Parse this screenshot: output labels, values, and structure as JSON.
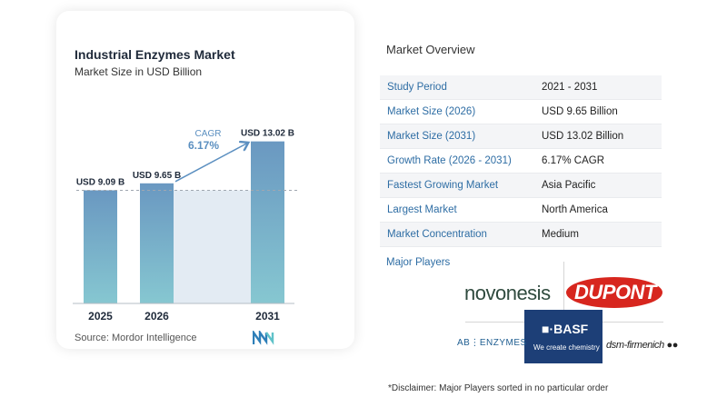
{
  "chart_data": {
    "type": "bar",
    "title": "Industrial Enzymes Market",
    "subtitle": "Market Size in USD Billion",
    "categories": [
      "2025",
      "2026",
      "2031"
    ],
    "values": [
      9.09,
      9.65,
      13.02
    ],
    "data_labels": [
      "USD 9.09 B",
      "USD 9.65 B",
      "USD 13.02 B"
    ],
    "ylim": [
      0,
      14
    ],
    "cagr_label": "CAGR",
    "cagr_value": "6.17%",
    "source": "Source:  Mordor Intelligence",
    "colors": {
      "bar_top": "#6a98c1",
      "bar_bottom": "#86c7d1",
      "band": "#e3ebf3",
      "arrow": "#5b8fc0"
    }
  },
  "overview": {
    "title": "Market Overview",
    "rows": [
      {
        "label": "Study Period",
        "value": "2021 - 2031"
      },
      {
        "label": "Market Size (2026)",
        "value": "USD 9.65 Billion"
      },
      {
        "label": "Market Size (2031)",
        "value": "USD 13.02 Billion"
      },
      {
        "label": "Growth Rate (2026 - 2031)",
        "value": "6.17% CAGR"
      },
      {
        "label": "Fastest Growing Market",
        "value": "Asia Pacific"
      },
      {
        "label": "Largest Market",
        "value": "North America"
      },
      {
        "label": "Market Concentration",
        "value": "Medium"
      }
    ],
    "players_title": "Major Players",
    "players": {
      "novonesis": "novonesis",
      "dupont": "DUPONT",
      "basf": "■·BASF",
      "basf_tagline": "We create chemistry",
      "ab_enzymes": "AB⋮ENZYMES",
      "dsm": "dsm-firmenich ●●"
    },
    "disclaimer": "*Disclaimer: Major Players sorted in no particular order"
  }
}
